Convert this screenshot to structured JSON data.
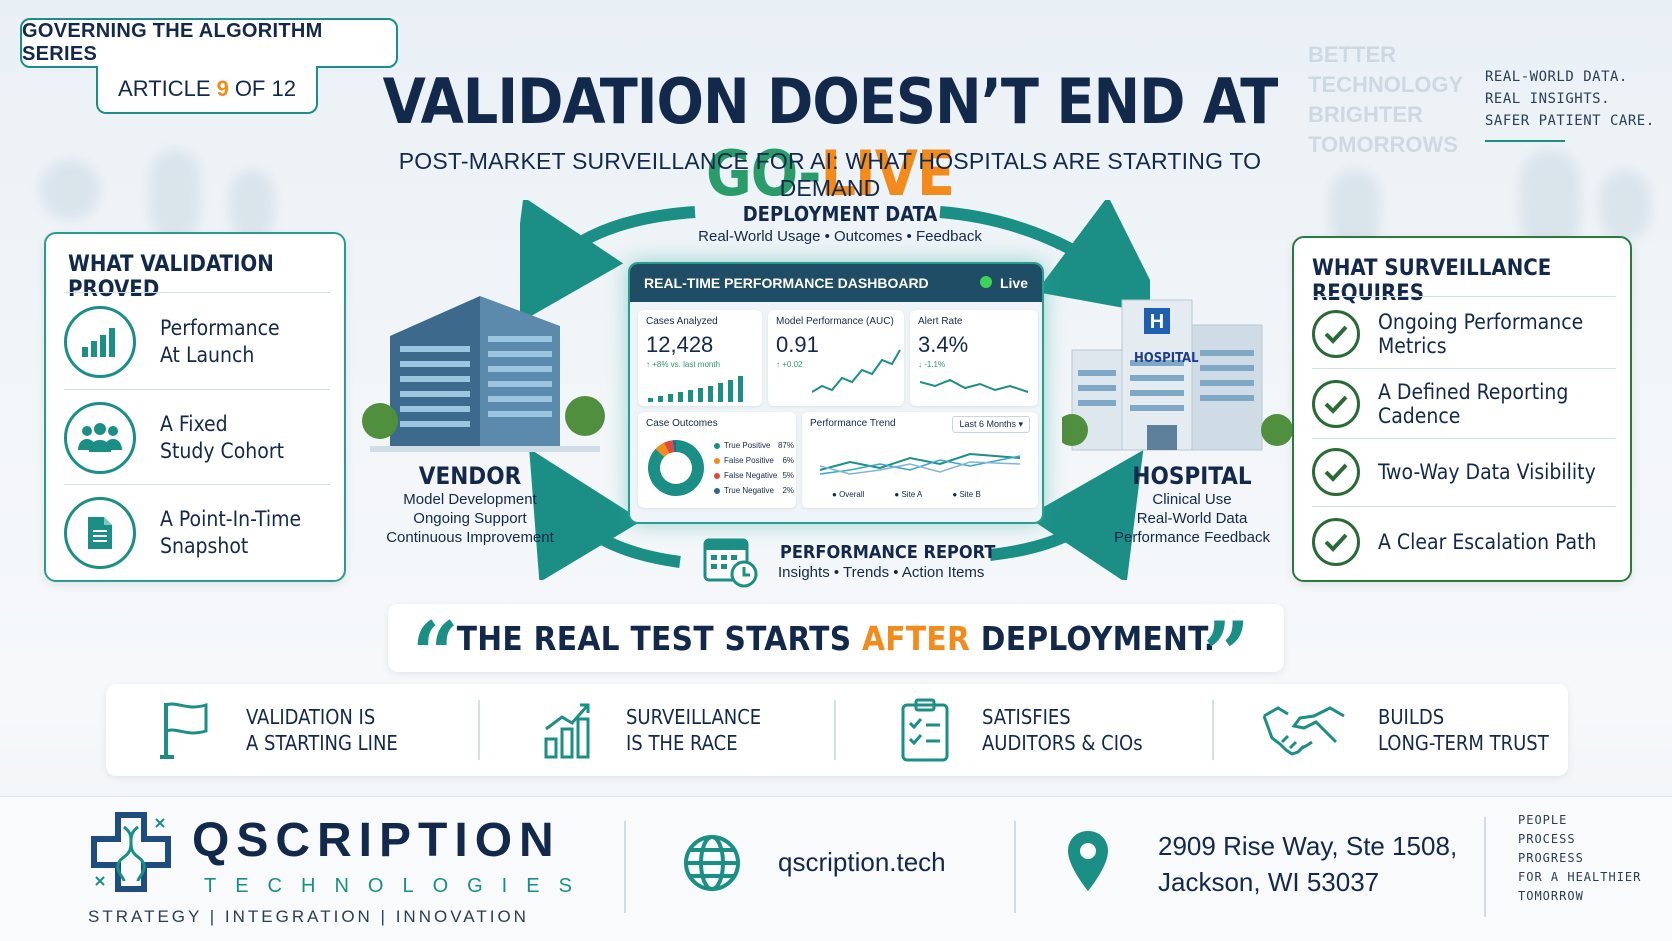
{
  "header": {
    "series_label": "GOVERNING THE ALGORITHM SERIES",
    "article_prefix": "ARTICLE",
    "article_number": "9",
    "article_suffix": "OF 12",
    "title_part1": "VALIDATION DOESN’T END AT ",
    "title_go": "GO-",
    "title_live": "LIVE",
    "subtitle": "POST-MARKET SURVEILLANCE FOR AI: WHAT HOSPITALS ARE STARTING TO DEMAND",
    "faded_slogan": [
      "BETTER",
      "TECHNOLOGY",
      "BRIGHTER",
      "TOMORROWS"
    ],
    "tagline": [
      "REAL-WORLD DATA.",
      "REAL INSIGHTS.",
      "SAFER PATIENT CARE."
    ]
  },
  "validation_panel": {
    "title": "WHAT VALIDATION PROVED",
    "items": [
      {
        "line1": "Performance",
        "line2": "At Launch",
        "icon": "bar-chart-icon"
      },
      {
        "line1": "A Fixed",
        "line2": "Study Cohort",
        "icon": "people-group-icon"
      },
      {
        "line1": "A Point-In-Time",
        "line2": "Snapshot",
        "icon": "document-icon"
      }
    ]
  },
  "surveillance_panel": {
    "title": "WHAT SURVEILLANCE REQUIRES",
    "items": [
      "Ongoing Performance Metrics",
      "A Defined Reporting Cadence",
      "Two-Way Data Visibility",
      "A Clear Escalation Path"
    ]
  },
  "cycle": {
    "deployment_title": "DEPLOYMENT DATA",
    "deployment_sub": "Real-World Usage • Outcomes • Feedback",
    "vendor_title": "VENDOR",
    "vendor_lines": [
      "Model Development",
      "Ongoing Support",
      "Continuous Improvement"
    ],
    "hospital_title": "HOSPITAL",
    "hospital_sign": "HOSPITAL",
    "hospital_lines": [
      "Clinical Use",
      "Real-World Data",
      "Performance Feedback"
    ],
    "report_title": "PERFORMANCE REPORT",
    "report_sub": "Insights • Trends • Action Items"
  },
  "dashboard": {
    "title": "REAL-TIME PERFORMANCE DASHBOARD",
    "status": "Live",
    "cases_label": "Cases Analyzed",
    "cases_value": "12,428",
    "cases_delta": "↑ +8% vs. last month",
    "auc_label": "Model Performance (AUC)",
    "auc_value": "0.91",
    "auc_delta": "↑ +0.02",
    "alert_label": "Alert Rate",
    "alert_value": "3.4%",
    "alert_delta": "↓ -1.1%",
    "outcomes_label": "Case Outcomes",
    "outcomes": [
      {
        "name": "True Positive",
        "pct": "87%",
        "value": 87,
        "color": "#1b8f86"
      },
      {
        "name": "False Positive",
        "pct": "6%",
        "value": 6,
        "color": "#f28a1c"
      },
      {
        "name": "False Negative",
        "pct": "5%",
        "value": 5,
        "color": "#e0483a"
      },
      {
        "name": "True Negative",
        "pct": "2%",
        "value": 2,
        "color": "#2a6b88"
      }
    ],
    "trend_label": "Performance Trend",
    "trend_range": "Last 6 Months",
    "trend_series": [
      "Overall",
      "Site A",
      "Site B"
    ]
  },
  "quote": {
    "part1": "THE REAL TEST STARTS ",
    "highlight": "AFTER",
    "part2": " DEPLOYMENT."
  },
  "benefits": [
    {
      "line1": "VALIDATION IS",
      "line2": "A STARTING LINE",
      "icon": "flag-icon"
    },
    {
      "line1": "SURVEILLANCE",
      "line2": "IS THE RACE",
      "icon": "growth-chart-icon"
    },
    {
      "line1": "SATISFIES",
      "line2": "AUDITORS & CIOs",
      "icon": "clipboard-checklist-icon"
    },
    {
      "line1": "BUILDS",
      "line2": "LONG-TERM TRUST",
      "icon": "handshake-icon"
    }
  ],
  "footer": {
    "logo_name": "QSCRIPTION",
    "logo_sub": "TECHNOLOGIES",
    "logo_tagline": "STRATEGY | INTEGRATION | INNOVATION",
    "website": "qscription.tech",
    "address_line1": "2909 Rise Way, Ste 1508,",
    "address_line2": "Jackson, WI 53037",
    "motto": [
      "PEOPLE",
      "PROCESS",
      "PROGRESS",
      "FOR A HEALTHIER",
      "TOMORROW"
    ]
  },
  "colors": {
    "navy": "#13294b",
    "teal": "#1b8f86",
    "orange": "#f28a1c",
    "green": "#2a9c6a"
  }
}
